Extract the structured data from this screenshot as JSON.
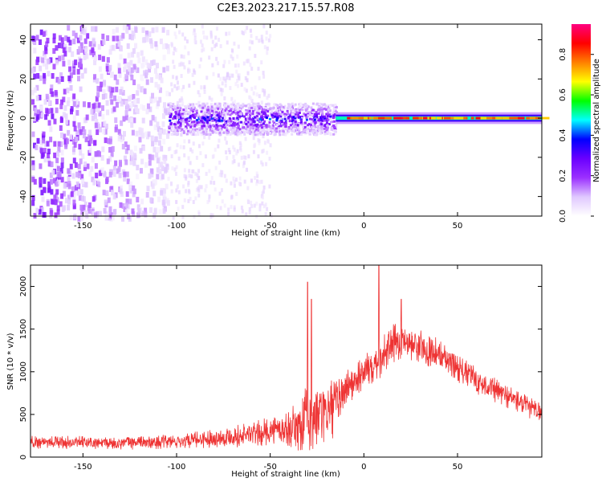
{
  "title": "C2E3.2023.217.15.57.R08",
  "chart_data": [
    {
      "type": "heatmap",
      "xlabel": "Height of straight line (km)",
      "ylabel": "Frequency (Hz)",
      "xlim": [
        -178,
        95
      ],
      "ylim": [
        -50,
        48
      ],
      "xticks": [
        -150,
        -100,
        -50,
        0,
        50
      ],
      "yticks": [
        -40,
        -20,
        0,
        20,
        40
      ],
      "colorbar": {
        "label": "Normalized spectral amplitude",
        "range": [
          0,
          0.95
        ],
        "ticks": [
          0.0,
          0.2,
          0.4,
          0.6,
          0.8
        ],
        "tick_labels": [
          "0.0",
          "0.2",
          "0.4",
          "0.6",
          "0.8"
        ],
        "colormap": [
          "#ffffff",
          "#e0c8ff",
          "#9b30ff",
          "#6a00ff",
          "#0000ff",
          "#00ffff",
          "#00ff00",
          "#ffff00",
          "#ff8000",
          "#ff0000",
          "#ff0080"
        ]
      },
      "regions": [
        {
          "x_range": [
            -178,
            -105
          ],
          "f_range": [
            -50,
            48
          ],
          "amplitude": 0.1,
          "pattern": "scattered noise"
        },
        {
          "x_range": [
            -105,
            -15
          ],
          "f_range": [
            -8,
            8
          ],
          "amplitude": 0.3,
          "pattern": "noisy band"
        },
        {
          "x_range": [
            -15,
            95
          ],
          "f_range": [
            -3,
            3
          ],
          "amplitude": 0.85,
          "pattern": "narrow line at 0 Hz"
        }
      ],
      "grid": false
    },
    {
      "type": "line",
      "xlabel": "Height of straight line (km)",
      "ylabel": "SNR (10 * v/v)",
      "xlim": [
        -178,
        95
      ],
      "ylim": [
        0,
        2250
      ],
      "xticks": [
        -150,
        -100,
        -50,
        0,
        50
      ],
      "yticks": [
        0,
        500,
        1000,
        1500,
        2000
      ],
      "series": [
        {
          "color": "#ee3333",
          "x": [
            -178,
            -170,
            -160,
            -150,
            -140,
            -130,
            -120,
            -110,
            -100,
            -90,
            -80,
            -70,
            -60,
            -50,
            -40,
            -35,
            -30,
            -25,
            -20,
            -15,
            -10,
            -5,
            0,
            5,
            10,
            15,
            20,
            25,
            30,
            40,
            50,
            60,
            70,
            80,
            90,
            95
          ],
          "mean": [
            170,
            180,
            175,
            165,
            160,
            165,
            170,
            175,
            185,
            200,
            220,
            240,
            270,
            300,
            340,
            360,
            420,
            480,
            520,
            600,
            800,
            900,
            1000,
            1100,
            1200,
            1300,
            1380,
            1350,
            1300,
            1200,
            1050,
            900,
            780,
            680,
            560,
            520
          ],
          "spread": [
            80,
            80,
            80,
            80,
            80,
            80,
            80,
            80,
            90,
            100,
            110,
            130,
            150,
            170,
            220,
            300,
            450,
            400,
            380,
            350,
            250,
            220,
            220,
            230,
            260,
            250,
            220,
            220,
            200,
            190,
            170,
            160,
            150,
            140,
            130,
            120
          ],
          "peaks": [
            [
              -30,
              2050
            ],
            [
              -28,
              1850
            ],
            [
              8,
              2250
            ],
            [
              20,
              1850
            ]
          ]
        }
      ],
      "grid": false
    }
  ]
}
